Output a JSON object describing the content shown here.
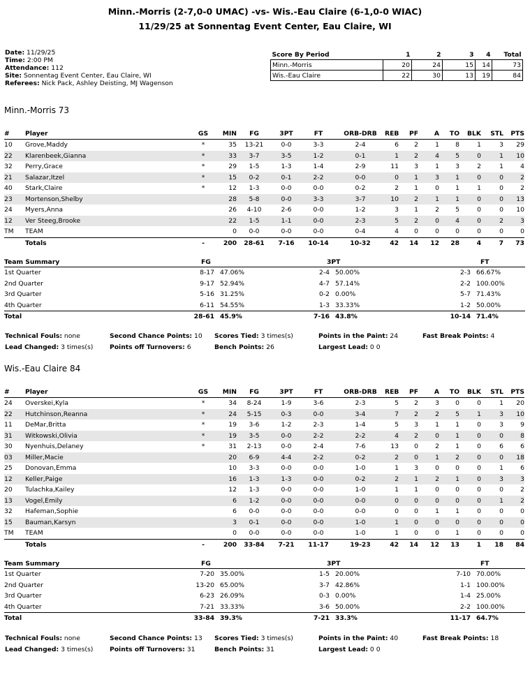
{
  "header": {
    "title_line1": "Minn.-Morris (2-7,0-0 UMAC) -vs- Wis.-Eau Claire (6-1,0-0 WIAC)",
    "title_line2": "11/29/25 at Sonnentag Event Center, Eau Claire, WI"
  },
  "info": [
    {
      "label": "Date:",
      "value": "11/29/25"
    },
    {
      "label": "Time:",
      "value": "2:00 PM"
    },
    {
      "label": "Attendance:",
      "value": "112"
    },
    {
      "label": "Site:",
      "value": "Sonnentag Event Center, Eau Claire, WI"
    },
    {
      "label": "Referees:",
      "value": "Nick Pack, Ashley Deisting, MJ Wagenson"
    }
  ],
  "score_by_period": {
    "headers": [
      "Score By Period",
      "1",
      "2",
      "3",
      "4",
      "Total"
    ],
    "rows": [
      [
        "Minn.-Morris",
        "20",
        "24",
        "15",
        "14",
        "73"
      ],
      [
        "Wis.-Eau Claire",
        "22",
        "30",
        "13",
        "19",
        "84"
      ]
    ]
  },
  "box_headers": [
    "#",
    "Player",
    "GS",
    "MIN",
    "FG",
    "3PT",
    "FT",
    "ORB-DRB",
    "REB",
    "PF",
    "A",
    "TO",
    "BLK",
    "STL",
    "PTS"
  ],
  "summary_headers": [
    "Team Summary",
    "FG",
    "3PT",
    "FT"
  ],
  "teams": [
    {
      "heading": "Minn.-Morris 73",
      "players": [
        [
          "10",
          "Grove,Maddy",
          "*",
          "35",
          "13-21",
          "0-0",
          "3-3",
          "2-4",
          "6",
          "2",
          "1",
          "8",
          "1",
          "3",
          "29"
        ],
        [
          "22",
          "Klarenbeek,Gianna",
          "*",
          "33",
          "3-7",
          "3-5",
          "1-2",
          "0-1",
          "1",
          "2",
          "4",
          "5",
          "0",
          "1",
          "10"
        ],
        [
          "32",
          "Perry,Grace",
          "*",
          "29",
          "1-5",
          "1-3",
          "1-4",
          "2-9",
          "11",
          "3",
          "1",
          "3",
          "2",
          "1",
          "4"
        ],
        [
          "21",
          "Salazar,Itzel",
          "*",
          "15",
          "0-2",
          "0-1",
          "2-2",
          "0-0",
          "0",
          "1",
          "3",
          "1",
          "0",
          "0",
          "2"
        ],
        [
          "40",
          "Stark,Claire",
          "*",
          "12",
          "1-3",
          "0-0",
          "0-0",
          "0-2",
          "2",
          "1",
          "0",
          "1",
          "1",
          "0",
          "2"
        ],
        [
          "23",
          "Mortenson,Shelby",
          "",
          "28",
          "5-8",
          "0-0",
          "3-3",
          "3-7",
          "10",
          "2",
          "1",
          "1",
          "0",
          "0",
          "13"
        ],
        [
          "24",
          "Myers,Anna",
          "",
          "26",
          "4-10",
          "2-6",
          "0-0",
          "1-2",
          "3",
          "1",
          "2",
          "5",
          "0",
          "0",
          "10"
        ],
        [
          "12",
          "Ver Steeg,Brooke",
          "",
          "22",
          "1-5",
          "1-1",
          "0-0",
          "2-3",
          "5",
          "2",
          "0",
          "4",
          "0",
          "2",
          "3"
        ],
        [
          "TM",
          "TEAM",
          "",
          "0",
          "0-0",
          "0-0",
          "0-0",
          "0-4",
          "4",
          "0",
          "0",
          "0",
          "0",
          "0",
          "0"
        ]
      ],
      "totals": [
        "",
        "Totals",
        "-",
        "200",
        "28-61",
        "7-16",
        "10-14",
        "10-32",
        "42",
        "14",
        "12",
        "28",
        "4",
        "7",
        "73"
      ],
      "summary": [
        [
          "1st Quarter",
          "8-17",
          "47.06%",
          "2-4",
          "50.00%",
          "2-3",
          "66.67%"
        ],
        [
          "2nd Quarter",
          "9-17",
          "52.94%",
          "4-7",
          "57.14%",
          "2-2",
          "100.00%"
        ],
        [
          "3rd Quarter",
          "5-16",
          "31.25%",
          "0-2",
          "0.00%",
          "5-7",
          "71.43%"
        ],
        [
          "4th Quarter",
          "6-11",
          "54.55%",
          "1-3",
          "33.33%",
          "1-2",
          "50.00%"
        ]
      ],
      "summary_total": [
        "Total",
        "28-61",
        "45.9%",
        "7-16",
        "43.8%",
        "10-14",
        "71.4%"
      ],
      "misc": [
        [
          {
            "label": "Technical Fouls:",
            "value": "none"
          },
          {
            "label": "Second Chance Points:",
            "value": "10"
          },
          {
            "label": "Scores Tied:",
            "value": "3 times(s)"
          },
          {
            "label": "Points in the Paint:",
            "value": "24"
          },
          {
            "label": "Fast Break Points:",
            "value": "4"
          }
        ],
        [
          {
            "label": "Lead Changed:",
            "value": "3 times(s)"
          },
          {
            "label": "Points off Turnovers:",
            "value": "6"
          },
          {
            "label": "Bench Points:",
            "value": "26"
          },
          {
            "label": "Largest Lead:",
            "value": "0 0"
          }
        ]
      ]
    },
    {
      "heading": "Wis.-Eau Claire 84",
      "players": [
        [
          "24",
          "Overskei,Kyla",
          "*",
          "34",
          "8-24",
          "1-9",
          "3-6",
          "2-3",
          "5",
          "2",
          "3",
          "0",
          "0",
          "1",
          "20"
        ],
        [
          "22",
          "Hutchinson,Reanna",
          "*",
          "24",
          "5-15",
          "0-3",
          "0-0",
          "3-4",
          "7",
          "2",
          "2",
          "5",
          "1",
          "3",
          "10"
        ],
        [
          "11",
          "DeMar,Britta",
          "*",
          "19",
          "3-6",
          "1-2",
          "2-3",
          "1-4",
          "5",
          "3",
          "1",
          "1",
          "0",
          "3",
          "9"
        ],
        [
          "31",
          "Witkowski,Olivia",
          "*",
          "19",
          "3-5",
          "0-0",
          "2-2",
          "2-2",
          "4",
          "2",
          "0",
          "1",
          "0",
          "0",
          "8"
        ],
        [
          "30",
          "Nyenhuis,Delaney",
          "*",
          "31",
          "2-13",
          "0-0",
          "2-4",
          "7-6",
          "13",
          "0",
          "2",
          "1",
          "0",
          "6",
          "6"
        ],
        [
          "03",
          "Miller,Macie",
          "",
          "20",
          "6-9",
          "4-4",
          "2-2",
          "0-2",
          "2",
          "0",
          "1",
          "2",
          "0",
          "0",
          "18"
        ],
        [
          "25",
          "Donovan,Emma",
          "",
          "10",
          "3-3",
          "0-0",
          "0-0",
          "1-0",
          "1",
          "3",
          "0",
          "0",
          "0",
          "1",
          "6"
        ],
        [
          "12",
          "Keller,Paige",
          "",
          "16",
          "1-3",
          "1-3",
          "0-0",
          "0-2",
          "2",
          "1",
          "2",
          "1",
          "0",
          "3",
          "3"
        ],
        [
          "20",
          "Tulachka,Kailey",
          "",
          "12",
          "1-3",
          "0-0",
          "0-0",
          "1-0",
          "1",
          "1",
          "0",
          "0",
          "0",
          "0",
          "2"
        ],
        [
          "13",
          "Vogel,Emily",
          "",
          "6",
          "1-2",
          "0-0",
          "0-0",
          "0-0",
          "0",
          "0",
          "0",
          "0",
          "0",
          "1",
          "2"
        ],
        [
          "32",
          "Hafeman,Sophie",
          "",
          "6",
          "0-0",
          "0-0",
          "0-0",
          "0-0",
          "0",
          "0",
          "1",
          "1",
          "0",
          "0",
          "0"
        ],
        [
          "15",
          "Bauman,Karsyn",
          "",
          "3",
          "0-1",
          "0-0",
          "0-0",
          "1-0",
          "1",
          "0",
          "0",
          "0",
          "0",
          "0",
          "0"
        ],
        [
          "TM",
          "TEAM",
          "",
          "0",
          "0-0",
          "0-0",
          "0-0",
          "1-0",
          "1",
          "0",
          "0",
          "1",
          "0",
          "0",
          "0"
        ]
      ],
      "totals": [
        "",
        "Totals",
        "-",
        "200",
        "33-84",
        "7-21",
        "11-17",
        "19-23",
        "42",
        "14",
        "12",
        "13",
        "1",
        "18",
        "84"
      ],
      "summary": [
        [
          "1st Quarter",
          "7-20",
          "35.00%",
          "1-5",
          "20.00%",
          "7-10",
          "70.00%"
        ],
        [
          "2nd Quarter",
          "13-20",
          "65.00%",
          "3-7",
          "42.86%",
          "1-1",
          "100.00%"
        ],
        [
          "3rd Quarter",
          "6-23",
          "26.09%",
          "0-3",
          "0.00%",
          "1-4",
          "25.00%"
        ],
        [
          "4th Quarter",
          "7-21",
          "33.33%",
          "3-6",
          "50.00%",
          "2-2",
          "100.00%"
        ]
      ],
      "summary_total": [
        "Total",
        "33-84",
        "39.3%",
        "7-21",
        "33.3%",
        "11-17",
        "64.7%"
      ],
      "misc": [
        [
          {
            "label": "Technical Fouls:",
            "value": "none"
          },
          {
            "label": "Second Chance Points:",
            "value": "13"
          },
          {
            "label": "Scores Tied:",
            "value": "3 times(s)"
          },
          {
            "label": "Points in the Paint:",
            "value": "40"
          },
          {
            "label": "Fast Break Points:",
            "value": "18"
          }
        ],
        [
          {
            "label": "Lead Changed:",
            "value": "3 times(s)"
          },
          {
            "label": "Points off Turnovers:",
            "value": "31"
          },
          {
            "label": "Bench Points:",
            "value": "31"
          },
          {
            "label": "Largest Lead:",
            "value": "0 0"
          }
        ]
      ]
    }
  ]
}
